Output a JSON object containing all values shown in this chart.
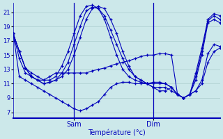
{
  "xlabel": "Température (°c)",
  "background_color": "#cce8ea",
  "grid_color": "#aacccc",
  "line_color": "#0000bb",
  "ylim": [
    6.2,
    22.3
  ],
  "xlim": [
    0,
    34
  ],
  "yticks": [
    7,
    9,
    11,
    13,
    15,
    17,
    19,
    21
  ],
  "sam_x": 10.0,
  "dim_x": 23.0,
  "series": [
    [
      18.0,
      15.5,
      13.2,
      12.0,
      11.5,
      11.0,
      11.2,
      11.5,
      12.0,
      13.0,
      15.0,
      17.5,
      20.0,
      21.5,
      21.8,
      21.5,
      20.0,
      18.0,
      15.5,
      13.5,
      12.0,
      11.5,
      11.0,
      10.5,
      10.0,
      10.0,
      10.5,
      9.5,
      9.0,
      9.5,
      11.5,
      15.0,
      19.5,
      20.0,
      19.5
    ],
    [
      18.0,
      15.5,
      13.2,
      12.0,
      11.5,
      11.0,
      11.2,
      11.5,
      12.5,
      14.0,
      16.5,
      19.0,
      21.2,
      21.7,
      21.5,
      20.5,
      18.5,
      16.5,
      14.5,
      13.0,
      12.0,
      11.5,
      11.0,
      10.5,
      10.5,
      10.5,
      10.0,
      9.5,
      9.0,
      9.5,
      12.0,
      15.5,
      19.8,
      20.5,
      20.0
    ],
    [
      18.0,
      15.5,
      13.2,
      12.5,
      12.0,
      11.5,
      11.5,
      12.0,
      13.5,
      15.5,
      18.0,
      20.5,
      21.8,
      22.0,
      21.5,
      20.0,
      17.5,
      15.0,
      13.0,
      12.0,
      11.5,
      11.2,
      11.0,
      11.0,
      11.0,
      11.0,
      10.5,
      9.5,
      9.0,
      9.5,
      12.5,
      16.0,
      20.0,
      20.8,
      20.5
    ],
    [
      18.0,
      14.5,
      12.5,
      12.0,
      11.5,
      11.5,
      12.0,
      12.5,
      12.5,
      12.5,
      12.5,
      12.5,
      12.5,
      12.8,
      13.0,
      13.2,
      13.5,
      13.8,
      14.0,
      14.2,
      14.5,
      14.8,
      15.0,
      15.0,
      15.2,
      15.2,
      15.0,
      9.5,
      9.0,
      9.5,
      10.0,
      11.5,
      15.2,
      16.5,
      16.2
    ],
    [
      18.0,
      12.0,
      11.5,
      11.0,
      10.5,
      10.0,
      9.5,
      9.0,
      8.5,
      8.0,
      7.5,
      7.2,
      7.5,
      8.0,
      8.5,
      9.5,
      10.5,
      11.0,
      11.2,
      11.2,
      11.0,
      11.0,
      11.0,
      11.2,
      11.2,
      11.0,
      10.5,
      9.5,
      9.0,
      9.5,
      10.0,
      11.0,
      14.0,
      15.5,
      16.0
    ]
  ]
}
